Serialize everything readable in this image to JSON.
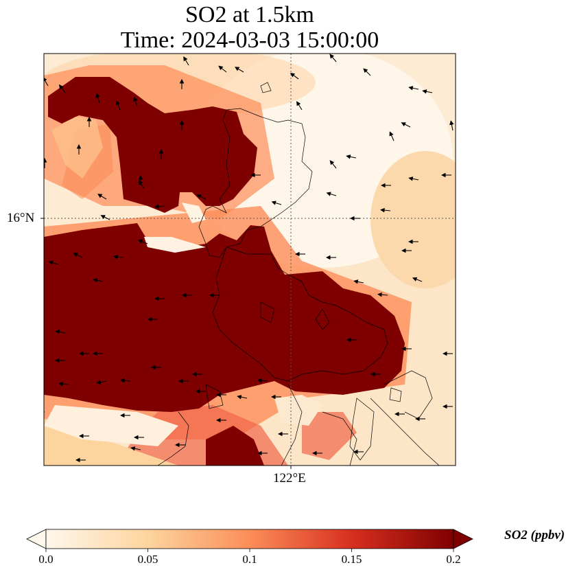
{
  "title": {
    "line1": "SO2 at 1.5km",
    "line2": "Time: 2024-03-03 15:00:00"
  },
  "axes": {
    "lat_label": "16°N",
    "lon_label": "122°E"
  },
  "colorbar": {
    "label": "SO2 (ppbv)",
    "ticks": [
      "0.0",
      "0.05",
      "0.1",
      "0.15",
      "0.2"
    ],
    "colormap": "OrRd",
    "stops": [
      "#fff7ec",
      "#fdd49e",
      "#fc8d59",
      "#d7301f",
      "#7f0000"
    ],
    "extend": "both"
  },
  "map": {
    "high_color": "#7f0000",
    "coastline_color": "#000000",
    "gridline_style": "dotted",
    "vectors": "wind arrows, predominantly westward"
  }
}
